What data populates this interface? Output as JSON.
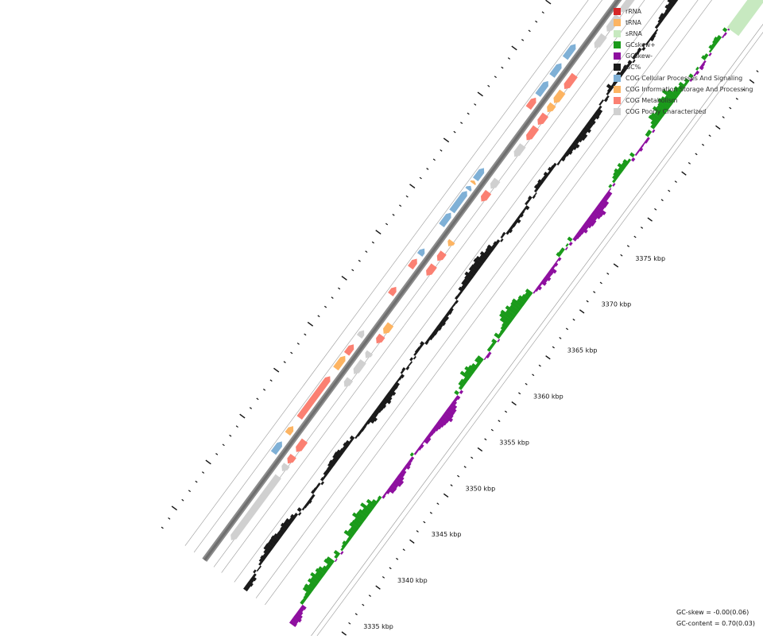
{
  "map": {
    "ticks": [
      {
        "label": "3335 kbp",
        "kbp": 3335
      },
      {
        "label": "3340 kbp",
        "kbp": 3340
      },
      {
        "label": "3345 kbp",
        "kbp": 3345
      },
      {
        "label": "3350 kbp",
        "kbp": 3350
      },
      {
        "label": "3355 kbp",
        "kbp": 3355
      },
      {
        "label": "3360 kbp",
        "kbp": 3360
      },
      {
        "label": "3365 kbp",
        "kbp": 3365
      },
      {
        "label": "3370 kbp",
        "kbp": 3370
      },
      {
        "label": "3375 kbp",
        "kbp": 3375
      }
    ]
  },
  "legend": {
    "items": [
      {
        "label": "rRNA",
        "color": "#d62728"
      },
      {
        "label": "tRNA",
        "color": "#fdb462"
      },
      {
        "label": "sRNA",
        "color": "#c7e9c0"
      },
      {
        "label": "GCskew+",
        "color": "#1a9a1a"
      },
      {
        "label": "GCskew-",
        "color": "#8e0f9f"
      },
      {
        "label": "GC%",
        "color": "#1a1a1a"
      },
      {
        "label": "COG Cellular Processes And Signaling",
        "color": "#7fb0d6"
      },
      {
        "label": "COG Information Storage And Processing",
        "color": "#fdb462"
      },
      {
        "label": "COG Metabolism",
        "color": "#fb8072"
      },
      {
        "label": "COG Poorly Characterized",
        "color": "#d0d0d0"
      }
    ]
  },
  "stats": {
    "gc_skew": "GC-skew = -0.00(0.06)",
    "gc_content": "GC-content = 0.70(0.03)"
  }
}
